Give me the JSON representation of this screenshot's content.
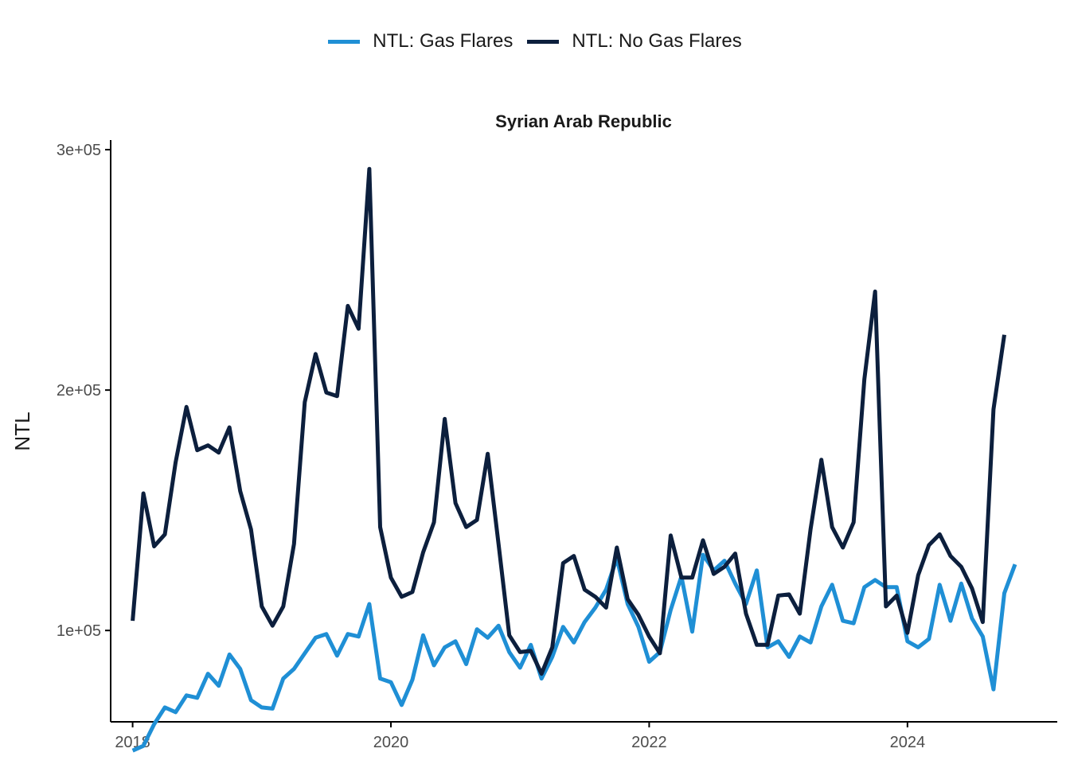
{
  "chart_data": {
    "type": "line",
    "title": "Syrian Arab Republic",
    "xlabel": "",
    "ylabel": "NTL",
    "xlim": [
      2017.83,
      2025.16
    ],
    "ylim": [
      62000,
      304000
    ],
    "x_ticks": [
      2018,
      2020,
      2022,
      2024
    ],
    "x_tick_labels": [
      "2018",
      "2020",
      "2022",
      "2024"
    ],
    "y_ticks": [
      100000,
      200000,
      300000
    ],
    "y_tick_labels": [
      "1e+05",
      "2e+05",
      "3e+05"
    ],
    "grid": false,
    "legend_position": "top",
    "x_start": 2018.0,
    "x_step": 0.08333,
    "series": [
      {
        "name": "NTL: Gas Flares",
        "color": "#1f8fd5",
        "values": [
          50000,
          52000,
          61000,
          68000,
          66000,
          73000,
          72000,
          82000,
          77000,
          90000,
          84000,
          71000,
          68000,
          67500,
          80000,
          84000,
          90500,
          97000,
          98500,
          89500,
          98500,
          97500,
          111000,
          80000,
          78500,
          69000,
          79500,
          98000,
          85500,
          93000,
          95500,
          86000,
          100500,
          97000,
          102000,
          91000,
          84500,
          94000,
          80000,
          89000,
          101500,
          95000,
          103500,
          109500,
          117000,
          130000,
          111000,
          101500,
          87000,
          91000,
          108500,
          122500,
          99500,
          131500,
          125000,
          129000,
          119500,
          111000,
          125000,
          93000,
          95500,
          89000,
          97500,
          95000,
          110000,
          119000,
          104000,
          103000,
          118000,
          121000,
          118000,
          118000,
          95500,
          93000,
          96500,
          119000,
          104000,
          119500,
          105000,
          97500,
          75500,
          115500,
          127500
        ]
      },
      {
        "name": "NTL: No Gas Flares",
        "color": "#0c1f3d",
        "values": [
          104000,
          157000,
          135000,
          140000,
          170000,
          193000,
          175000,
          177000,
          174000,
          184500,
          158000,
          142000,
          110000,
          102000,
          110000,
          136000,
          195000,
          215000,
          199000,
          197500,
          235000,
          225500,
          292000,
          143000,
          122000,
          114000,
          116000,
          132500,
          145000,
          188000,
          153000,
          143000,
          146000,
          173500,
          136000,
          98000,
          91000,
          91500,
          82000,
          93000,
          128000,
          131000,
          117000,
          114000,
          109500,
          134500,
          113000,
          106500,
          97500,
          90500,
          139500,
          122000,
          122000,
          137500,
          123500,
          126500,
          132000,
          107000,
          94000,
          94000,
          114500,
          115000,
          107000,
          142000,
          171000,
          143000,
          134500,
          145000,
          204500,
          241000,
          110000,
          114500,
          99000,
          123000,
          135500,
          140000,
          131000,
          126500,
          117500,
          103500,
          192000,
          223000
        ]
      }
    ]
  }
}
